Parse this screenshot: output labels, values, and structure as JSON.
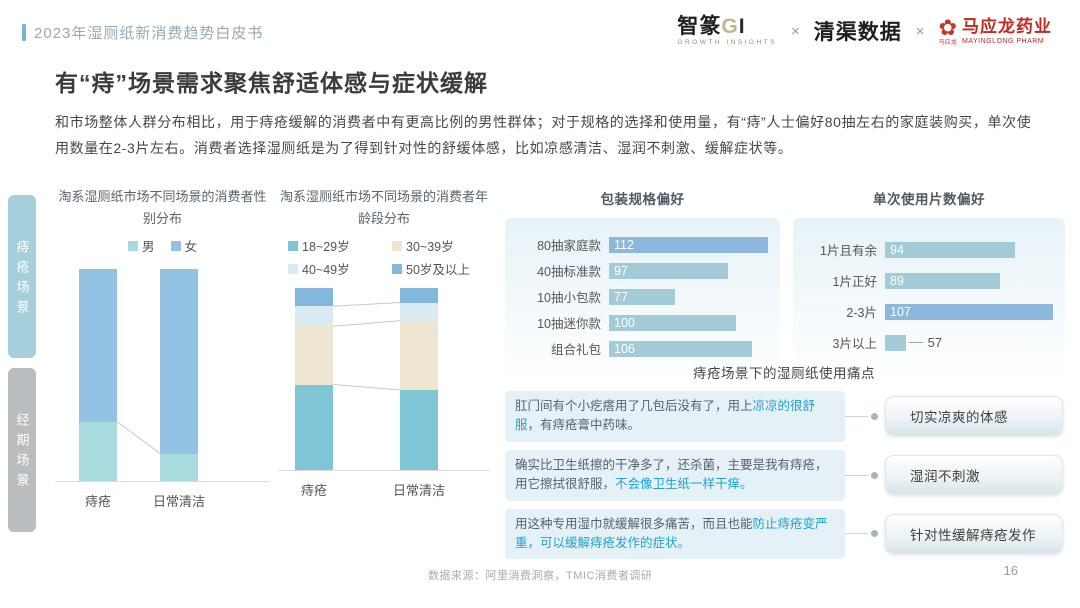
{
  "header": {
    "breadcrumb": "2023年湿厕纸新消费趋势白皮书",
    "logos": {
      "zz_name": "智篆",
      "zz_g": "G",
      "zz_i": "I",
      "zz_sub": "GROWTH INSIGHTS",
      "sep1": "×",
      "qingqu": "清渠数据",
      "sep2": "×",
      "ml_flower": "✿",
      "ml_emblem_text": "马应龙",
      "ml_name": "马应龙药业",
      "ml_sub": "MAYINGLONG PHARM"
    }
  },
  "title": "有“痔”场景需求聚焦舒适体感与症状缓解",
  "intro": "和市场整体人群分布相比，用于痔疮缓解的消费者中有更高比例的男性群体；对于规格的选择和使用量，有“痔”人士偏好80抽左右的家庭装购买，单次使用数量在2-3片左右。消费者选择湿厕纸是为了得到针对性的舒缓体感，比如凉感清洁、湿润不刺激、缓解症状等。",
  "side_tabs": [
    {
      "label": "痔疮场景",
      "active": true
    },
    {
      "label": "经期场景",
      "active": false
    }
  ],
  "chart_data": [
    {
      "type": "bar",
      "variant": "stacked-column-percent",
      "title": "淘系湿厕纸市场不同场景的消费者性别分布",
      "categories": [
        "痔疮",
        "日常清洁"
      ],
      "series": [
        {
          "name": "男",
          "values": [
            28,
            13
          ],
          "color": "#a9dadd"
        },
        {
          "name": "女",
          "values": [
            72,
            87
          ],
          "color": "#93c2e2"
        }
      ],
      "unit": "%",
      "ylim": [
        0,
        100
      ],
      "legend_position": "top",
      "grid": false
    },
    {
      "type": "bar",
      "variant": "stacked-column-percent",
      "title": "淘系湿厕纸市场不同场景的消费者年龄段分布",
      "categories": [
        "痔疮",
        "日常清洁"
      ],
      "series": [
        {
          "name": "18~29岁",
          "values": [
            47,
            44
          ],
          "color": "#7fc5d6"
        },
        {
          "name": "30~39岁",
          "values": [
            32,
            38
          ],
          "color": "#eee6d0"
        },
        {
          "name": "40~49岁",
          "values": [
            11,
            10
          ],
          "color": "#daecf2"
        },
        {
          "name": "50岁及以上",
          "values": [
            10,
            8
          ],
          "color": "#84b7dc"
        }
      ],
      "unit": "%",
      "ylim": [
        0,
        100
      ],
      "legend_position": "top",
      "grid": false
    },
    {
      "type": "bar",
      "variant": "horizontal",
      "title": "包装规格偏好",
      "categories": [
        "80抽家庭款",
        "40抽标准款",
        "10抽小包款",
        "10抽迷你款",
        "组合礼包"
      ],
      "values": [
        112,
        97,
        77,
        100,
        106
      ],
      "highlight_index": 0,
      "scale_min": 52,
      "colors": {
        "bar": "#a2cbd7",
        "highlight": "#8bb8dc"
      },
      "value_labels": "inside",
      "grid": false
    },
    {
      "type": "bar",
      "variant": "horizontal",
      "title": "单次使用片数偏好",
      "categories": [
        "1片且有余",
        "1片正好",
        "2-3片",
        "3片以上"
      ],
      "values": [
        94,
        89,
        107,
        57
      ],
      "highlight_index": 2,
      "scale_min": 50,
      "label_outside_index": 3,
      "colors": {
        "bar": "#a2cbd7",
        "highlight": "#8bb8dc"
      },
      "value_labels": "inside",
      "grid": false
    }
  ],
  "pain_points": {
    "title": "痔疮场景下的湿厕纸使用痛点",
    "items": [
      {
        "quote": [
          {
            "text": "肛门间有个小疙瘩用了几包后没有了，用上",
            "highlight": false
          },
          {
            "text": "凉凉的很舒服",
            "highlight": true
          },
          {
            "text": "，有痔疮膏中药味。",
            "highlight": false
          }
        ],
        "label": "切实凉爽的体感"
      },
      {
        "quote": [
          {
            "text": "确实比卫生纸擦的干净多了，还杀菌，主要是我有痔疮，用它擦拭很舒服，",
            "highlight": false
          },
          {
            "text": "不会像卫生纸一样干痒。",
            "highlight": true
          }
        ],
        "label": "湿润不刺激"
      },
      {
        "quote": [
          {
            "text": "用这种专用湿巾就缓解很多痛苦，而且也能",
            "highlight": false
          },
          {
            "text": "防止痔疮变严重，可以缓解痔疮发作的症状。",
            "highlight": true
          }
        ],
        "label": "针对性缓解痔疮发作"
      }
    ]
  },
  "footer": {
    "source": "数据来源：阿里消费洞察，TMIC消费者调研",
    "page": "16"
  }
}
